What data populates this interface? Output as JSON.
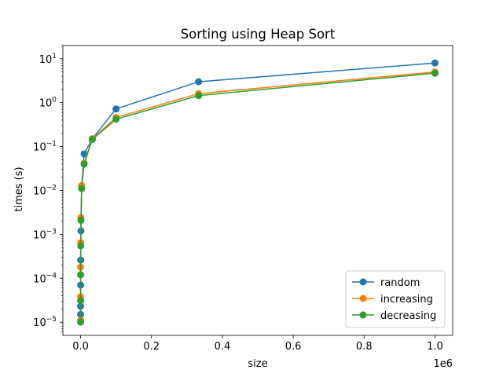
{
  "chart_data": {
    "type": "line",
    "title": "Sorting using Heap Sort",
    "xlabel": "size",
    "ylabel": "times (s)",
    "x_offset_text": "1e6",
    "x_scale": "linear",
    "y_scale": "log",
    "xlim": [
      -50000,
      1050000
    ],
    "ylim": [
      5e-06,
      20
    ],
    "grid": false,
    "legend_position": "lower-right",
    "x_ticks": [
      0,
      200000,
      400000,
      600000,
      800000,
      1000000
    ],
    "x_tick_labels": [
      "0.0",
      "0.2",
      "0.4",
      "0.6",
      "0.8",
      "1.0"
    ],
    "y_ticks": [
      1e-05,
      0.0001,
      0.001,
      0.01,
      0.1,
      1,
      10
    ],
    "y_tick_labels": [
      {
        "base": "10",
        "exp": "−5"
      },
      {
        "base": "10",
        "exp": "−4"
      },
      {
        "base": "10",
        "exp": "−3"
      },
      {
        "base": "10",
        "exp": "−2"
      },
      {
        "base": "10",
        "exp": "−1"
      },
      {
        "base": "10",
        "exp": "0"
      },
      {
        "base": "10",
        "exp": "1"
      }
    ],
    "x": [
      10,
      30,
      100,
      300,
      1000,
      3000,
      10000,
      33000,
      100000,
      333000,
      1000000
    ],
    "series": [
      {
        "name": "random",
        "color": "#1f77b4",
        "values": [
          1.5e-05,
          2.3e-05,
          7e-05,
          0.00026,
          0.0012,
          0.012,
          0.068,
          0.15,
          0.72,
          3.0,
          8.0
        ]
      },
      {
        "name": "increasing",
        "color": "#ff7f0e",
        "values": [
          1.1e-05,
          3.8e-05,
          0.00018,
          0.00065,
          0.0024,
          0.013,
          0.042,
          0.15,
          0.46,
          1.6,
          5.0
        ]
      },
      {
        "name": "decreasing",
        "color": "#2ca02c",
        "values": [
          1e-05,
          3.1e-05,
          0.00012,
          0.00055,
          0.0021,
          0.011,
          0.04,
          0.145,
          0.42,
          1.45,
          4.7
        ]
      }
    ]
  }
}
